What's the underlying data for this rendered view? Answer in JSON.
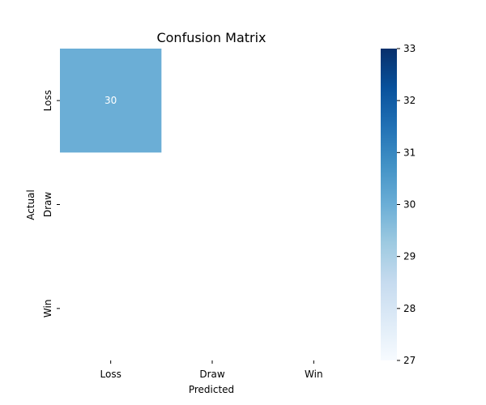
{
  "chart_data": {
    "type": "heatmap",
    "title": "Confusion Matrix",
    "xlabel": "Predicted",
    "ylabel": "Actual",
    "x_categories": [
      "Loss",
      "Draw",
      "Win"
    ],
    "y_categories": [
      "Loss",
      "Draw",
      "Win"
    ],
    "values": [
      [
        30,
        null,
        null
      ],
      [
        null,
        null,
        null
      ],
      [
        null,
        null,
        null
      ]
    ],
    "colormap": "Blues",
    "colorbar": {
      "range": [
        27,
        33
      ],
      "ticks": [
        27,
        28,
        29,
        30,
        31,
        32,
        33
      ]
    },
    "cell_text_color": "#ffffff",
    "colors": {
      "cmap_stops": [
        "#f7fbff",
        "#deebf7",
        "#c6dbef",
        "#9ecae1",
        "#6baed6",
        "#4292c6",
        "#2171b5",
        "#08519c",
        "#08306b"
      ]
    }
  }
}
